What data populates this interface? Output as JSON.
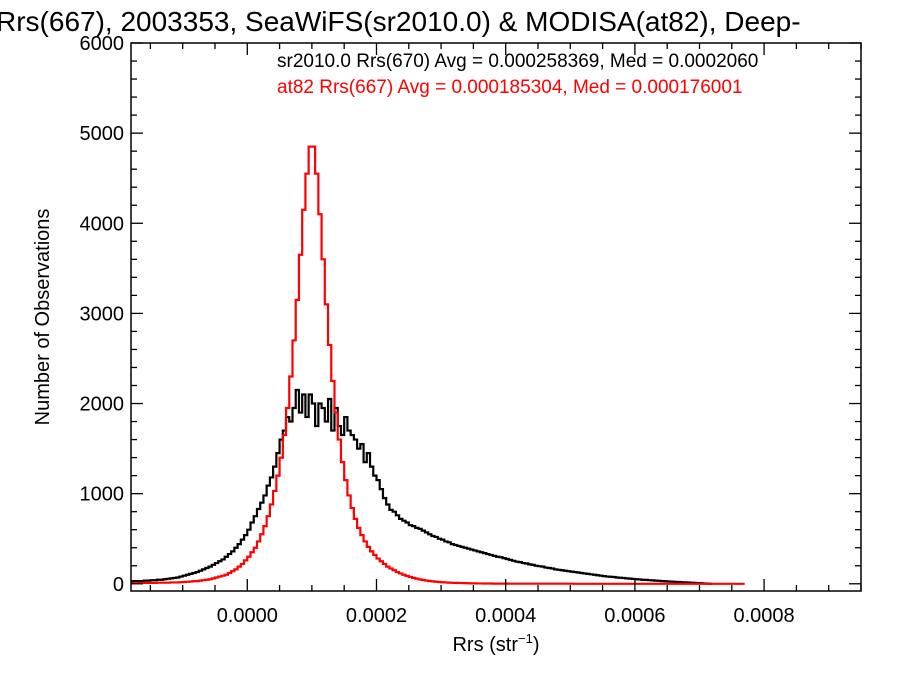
{
  "chart_data": {
    "type": "histogram",
    "title": "Rrs(667), 2003353, SeaWiFS(sr2010.0) & MODISA(at82), Deep-",
    "xlabel": "Rrs (str",
    "xlabel_sup": "−1",
    "xlabel_close": ")",
    "ylabel": "Number of Observations",
    "xlim": [
      -0.00018,
      0.00095
    ],
    "ylim": [
      -80,
      6000
    ],
    "x_ticks": [
      0.0,
      0.0002,
      0.0004,
      0.0006,
      0.0008
    ],
    "x_tick_labels": [
      "0.0000",
      "0.0002",
      "0.0004",
      "0.0006",
      "0.0008"
    ],
    "y_ticks": [
      0,
      1000,
      2000,
      3000,
      4000,
      5000,
      6000
    ],
    "y_tick_labels": [
      "0",
      "1000",
      "2000",
      "3000",
      "4000",
      "5000",
      "6000"
    ],
    "grid": false,
    "bin_edges_start": -0.00018,
    "bin_width": 5e-06,
    "annotations": [
      {
        "text": "sr2010.0 Rrs(670) Avg = 0.000258369, Med = 0.0002060",
        "color": "#000000"
      },
      {
        "text": "at82 Rrs(667) Avg = 0.000185304, Med = 0.000176001",
        "color": "#ff0000"
      }
    ],
    "series": [
      {
        "color": "#000000",
        "values": [
          30,
          30,
          30,
          30,
          35,
          35,
          40,
          40,
          45,
          45,
          50,
          55,
          60,
          65,
          70,
          80,
          90,
          100,
          110,
          120,
          130,
          145,
          160,
          175,
          190,
          210,
          230,
          250,
          270,
          300,
          330,
          360,
          400,
          440,
          490,
          540,
          600,
          680,
          750,
          830,
          900,
          980,
          1090,
          1180,
          1300,
          1450,
          1600,
          1700,
          1850,
          1800,
          1950,
          2150,
          1900,
          2100,
          1850,
          2100,
          2000,
          1750,
          2000,
          1950,
          1800,
          2050,
          1700,
          1950,
          1750,
          1650,
          1850,
          1700,
          1650,
          1600,
          1500,
          1550,
          1350,
          1450,
          1300,
          1200,
          1150,
          1050,
          950,
          880,
          820,
          800,
          760,
          720,
          700,
          680,
          650,
          640,
          620,
          610,
          590,
          570,
          550,
          530,
          520,
          500,
          490,
          470,
          460,
          440,
          430,
          420,
          410,
          400,
          390,
          380,
          370,
          360,
          350,
          340,
          330,
          320,
          310,
          300,
          295,
          285,
          275,
          265,
          255,
          245,
          240,
          230,
          225,
          215,
          210,
          200,
          195,
          190,
          180,
          175,
          170,
          160,
          155,
          150,
          145,
          140,
          135,
          130,
          125,
          120,
          115,
          110,
          105,
          100,
          95,
          90,
          85,
          80,
          78,
          75,
          70,
          67,
          64,
          60,
          57,
          54,
          50,
          48,
          45,
          43,
          40,
          38,
          35,
          33,
          30,
          28,
          26,
          24,
          22,
          20,
          18,
          16,
          14,
          12,
          10,
          8,
          6,
          4,
          2,
          0
        ]
      },
      {
        "color": "#ff0000",
        "values": [
          10,
          10,
          10,
          10,
          10,
          10,
          10,
          10,
          12,
          12,
          12,
          12,
          15,
          15,
          15,
          18,
          20,
          22,
          25,
          28,
          30,
          35,
          40,
          45,
          50,
          60,
          70,
          80,
          90,
          100,
          120,
          140,
          160,
          190,
          220,
          260,
          300,
          350,
          400,
          470,
          550,
          640,
          750,
          880,
          1030,
          1200,
          1400,
          1650,
          1950,
          2300,
          2700,
          3150,
          3650,
          4150,
          4550,
          4850,
          4850,
          4550,
          4100,
          3600,
          3100,
          2650,
          2250,
          1900,
          1600,
          1350,
          1150,
          980,
          840,
          720,
          620,
          540,
          470,
          410,
          360,
          320,
          280,
          250,
          220,
          190,
          170,
          150,
          130,
          115,
          100,
          88,
          76,
          66,
          57,
          49,
          42,
          36,
          31,
          27,
          23,
          20,
          17,
          15,
          13,
          11,
          10,
          9,
          8,
          7,
          6,
          5,
          5,
          4,
          4,
          3,
          3,
          3,
          2,
          2,
          2,
          2,
          2,
          1,
          1,
          1,
          1,
          1,
          1,
          1,
          1,
          1,
          1,
          1,
          1,
          1,
          1,
          1,
          1,
          1,
          1,
          1,
          1,
          0,
          0,
          0,
          0,
          0,
          0,
          0,
          0,
          0,
          0,
          0,
          0,
          0,
          0,
          0,
          0,
          0,
          0,
          0,
          0,
          0,
          0,
          0,
          0,
          0,
          0,
          0,
          0,
          0,
          0,
          0,
          0,
          0,
          0,
          0,
          0,
          0,
          0,
          0,
          0,
          0,
          0,
          0,
          0,
          0,
          0,
          0,
          0,
          0,
          0,
          0,
          0,
          0
        ]
      }
    ]
  }
}
